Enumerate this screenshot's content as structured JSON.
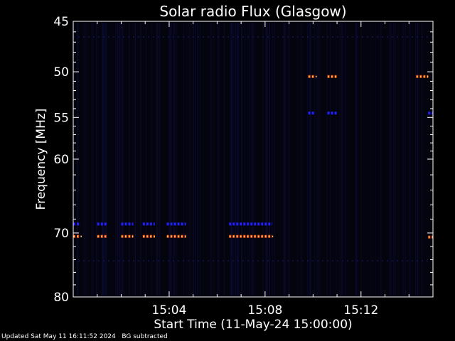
{
  "chart_data": {
    "type": "heatmap",
    "title": "Solar radio Flux (Glasgow)",
    "xlabel": "Start Time (11-May-24 15:00:00)",
    "ylabel": "Frequency [MHz]",
    "x_unit": "minutes after 15:00",
    "xlim": [
      0,
      15
    ],
    "x_ticks": [
      4,
      8,
      12
    ],
    "x_tick_labels": [
      "15:04",
      "15:08",
      "15:12"
    ],
    "ylim": [
      45,
      80
    ],
    "y_scale": "log",
    "y_axis_inverted": true,
    "y_ticks": [
      45,
      50,
      55,
      60,
      70,
      80
    ],
    "y_tick_labels": [
      "45",
      "50",
      "55",
      "60",
      "70",
      "80"
    ],
    "background": "#000000",
    "colors": {
      "bright": "#ff5500",
      "medium": "#2020ff",
      "faint": "#151550"
    },
    "features": [
      {
        "name": "RFI 70.5 MHz",
        "freq": 70.5,
        "level": "bright",
        "segments": [
          [
            0.0,
            0.3
          ],
          [
            1.0,
            1.4
          ],
          [
            2.0,
            2.5
          ],
          [
            2.9,
            3.4
          ],
          [
            3.9,
            4.7
          ],
          [
            6.5,
            8.3
          ]
        ]
      },
      {
        "name": "RFI 68.7 MHz",
        "freq": 68.7,
        "level": "medium",
        "segments": [
          [
            0.0,
            0.3
          ],
          [
            1.0,
            1.4
          ],
          [
            2.0,
            2.5
          ],
          [
            2.9,
            3.4
          ],
          [
            3.9,
            4.7
          ],
          [
            6.5,
            8.3
          ]
        ]
      },
      {
        "name": "RFI 50.5 MHz",
        "freq": 50.5,
        "level": "bright",
        "segments": [
          [
            9.8,
            10.1
          ],
          [
            10.6,
            11.0
          ],
          [
            14.3,
            14.8
          ]
        ]
      },
      {
        "name": "RFI 54.5 MHz",
        "freq": 54.5,
        "level": "medium",
        "segments": [
          [
            9.8,
            10.1
          ],
          [
            10.6,
            11.0
          ],
          [
            14.8,
            15.0
          ]
        ]
      },
      {
        "name": "RFI 70.6 MHz late",
        "freq": 70.6,
        "level": "bright",
        "segments": [
          [
            14.8,
            15.0
          ]
        ]
      },
      {
        "name": "faint 74 MHz",
        "freq": 74.2,
        "level": "faint",
        "segments": [
          [
            0.0,
            15.0
          ]
        ]
      },
      {
        "name": "faint 46.5 MHz",
        "freq": 46.5,
        "level": "faint",
        "segments": [
          [
            0.0,
            15.0
          ]
        ]
      }
    ]
  },
  "footer": {
    "updated": "Updated Sat May 11 16:11:52 2024",
    "mode": "BG subtracted"
  }
}
